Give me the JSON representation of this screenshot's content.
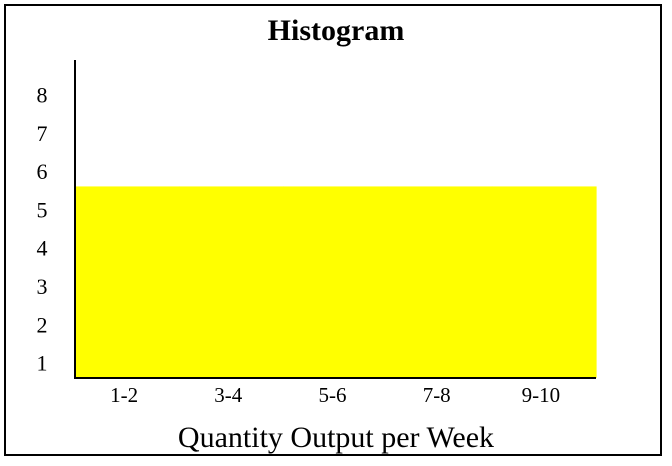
{
  "chart_data": {
    "type": "bar",
    "title": "Histogram",
    "xlabel": "Quantity Output per Week",
    "ylabel": "",
    "categories": [
      "1-2",
      "3-4",
      "5-6",
      "7-8",
      "9-10"
    ],
    "values": [
      5.6,
      5.6,
      5.6,
      5.6,
      5.6
    ],
    "yticks": [
      1,
      2,
      3,
      4,
      5,
      6,
      7,
      8
    ],
    "ylim": [
      0.6,
      8.9
    ],
    "grid": false,
    "legend": "none",
    "bar_color": "#ffff00"
  }
}
